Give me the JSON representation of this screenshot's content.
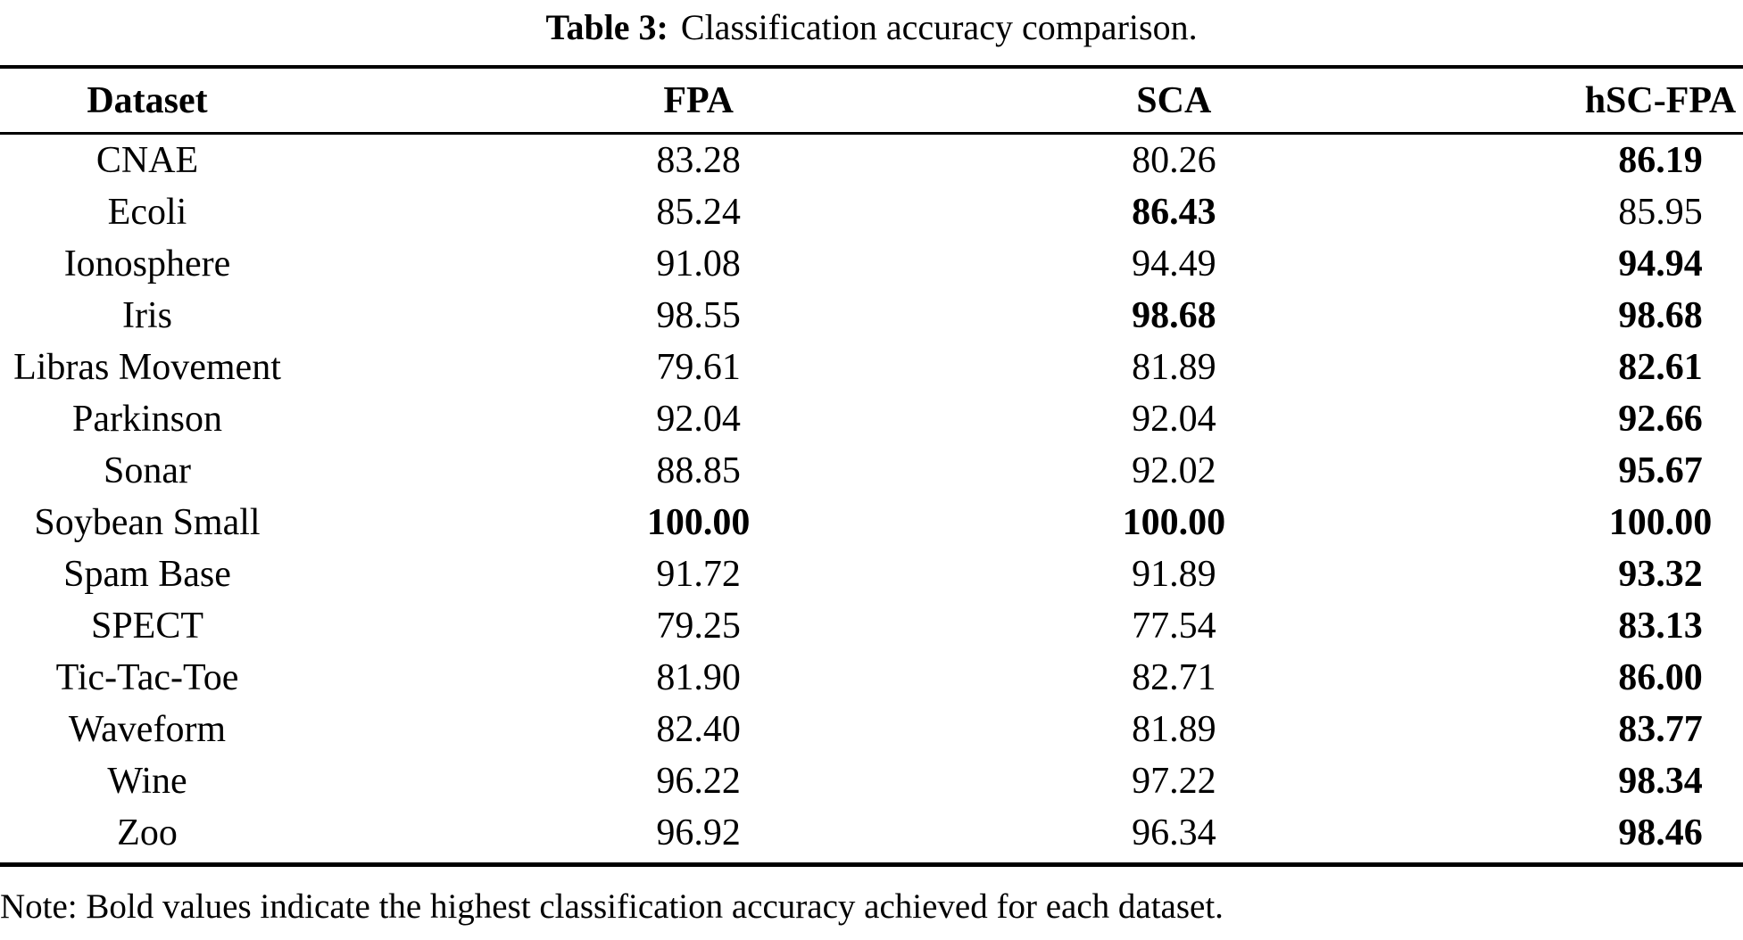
{
  "caption": {
    "label": "Table 3:",
    "text": "Classification accuracy comparison."
  },
  "table": {
    "columns": [
      "Dataset",
      "FPA",
      "SCA",
      "hSC-FPA"
    ],
    "rows": [
      {
        "dataset": "CNAE",
        "fpa": "83.28",
        "sca": "80.26",
        "hsc_fpa": "86.19",
        "bold": [
          "hsc_fpa"
        ]
      },
      {
        "dataset": "Ecoli",
        "fpa": "85.24",
        "sca": "86.43",
        "hsc_fpa": "85.95",
        "bold": [
          "sca"
        ]
      },
      {
        "dataset": "Ionosphere",
        "fpa": "91.08",
        "sca": "94.49",
        "hsc_fpa": "94.94",
        "bold": [
          "hsc_fpa"
        ]
      },
      {
        "dataset": "Iris",
        "fpa": "98.55",
        "sca": "98.68",
        "hsc_fpa": "98.68",
        "bold": [
          "sca",
          "hsc_fpa"
        ]
      },
      {
        "dataset": "Libras Movement",
        "fpa": "79.61",
        "sca": "81.89",
        "hsc_fpa": "82.61",
        "bold": [
          "hsc_fpa"
        ]
      },
      {
        "dataset": "Parkinson",
        "fpa": "92.04",
        "sca": "92.04",
        "hsc_fpa": "92.66",
        "bold": [
          "hsc_fpa"
        ]
      },
      {
        "dataset": "Sonar",
        "fpa": "88.85",
        "sca": "92.02",
        "hsc_fpa": "95.67",
        "bold": [
          "hsc_fpa"
        ]
      },
      {
        "dataset": "Soybean Small",
        "fpa": "100.00",
        "sca": "100.00",
        "hsc_fpa": "100.00",
        "bold": [
          "fpa",
          "sca",
          "hsc_fpa"
        ]
      },
      {
        "dataset": "Spam Base",
        "fpa": "91.72",
        "sca": "91.89",
        "hsc_fpa": "93.32",
        "bold": [
          "hsc_fpa"
        ]
      },
      {
        "dataset": "SPECT",
        "fpa": "79.25",
        "sca": "77.54",
        "hsc_fpa": "83.13",
        "bold": [
          "hsc_fpa"
        ]
      },
      {
        "dataset": "Tic-Tac-Toe",
        "fpa": "81.90",
        "sca": "82.71",
        "hsc_fpa": "86.00",
        "bold": [
          "hsc_fpa"
        ]
      },
      {
        "dataset": "Waveform",
        "fpa": "82.40",
        "sca": "81.89",
        "hsc_fpa": "83.77",
        "bold": [
          "hsc_fpa"
        ]
      },
      {
        "dataset": "Wine",
        "fpa": "96.22",
        "sca": "97.22",
        "hsc_fpa": "98.34",
        "bold": [
          "hsc_fpa"
        ]
      },
      {
        "dataset": "Zoo",
        "fpa": "96.92",
        "sca": "96.34",
        "hsc_fpa": "98.46",
        "bold": [
          "hsc_fpa"
        ]
      }
    ]
  },
  "note": "Note: Bold values indicate the highest classification accuracy achieved for each dataset.",
  "colors": {
    "text": "#000000",
    "background": "#ffffff",
    "rule": "#000000"
  }
}
